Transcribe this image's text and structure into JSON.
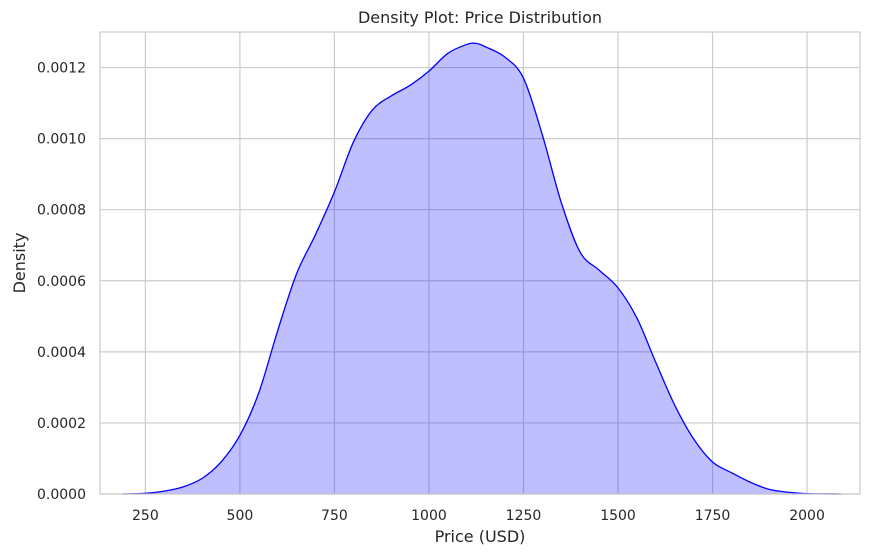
{
  "chart_data": {
    "type": "area",
    "title": "Density Plot: Price Distribution",
    "xlabel": "Price (USD)",
    "ylabel": "Density",
    "xlim": [
      130,
      2140
    ],
    "ylim": [
      0,
      0.0013
    ],
    "x_ticks": [
      250,
      500,
      750,
      1000,
      1250,
      1500,
      1750,
      2000
    ],
    "x_tick_labels": [
      "250",
      "500",
      "750",
      "1000",
      "1250",
      "1500",
      "1750",
      "2000"
    ],
    "y_ticks": [
      0,
      0.0002,
      0.0004,
      0.0006,
      0.0008,
      0.001,
      0.0012
    ],
    "y_tick_labels": [
      "0.0000",
      "0.0002",
      "0.0004",
      "0.0006",
      "0.0008",
      "0.0010",
      "0.0012"
    ],
    "grid": true,
    "series": [
      {
        "x": [
          190,
          250,
          300,
          350,
          400,
          450,
          500,
          550,
          600,
          650,
          700,
          750,
          800,
          850,
          900,
          950,
          1000,
          1050,
          1100,
          1125,
          1150,
          1200,
          1250,
          1300,
          1350,
          1400,
          1450,
          1500,
          1550,
          1600,
          1650,
          1700,
          1750,
          1800,
          1850,
          1900,
          1950,
          2000,
          2090
        ],
        "y": [
          0,
          2e-06,
          8e-06,
          2e-05,
          4.4e-05,
          9e-05,
          0.000165,
          0.000285,
          0.00046,
          0.00062,
          0.00073,
          0.00085,
          0.00099,
          0.00108,
          0.00112,
          0.00115,
          0.00119,
          0.00124,
          0.001265,
          0.001268,
          0.001258,
          0.00123,
          0.00117,
          0.00101,
          0.00082,
          0.00068,
          0.00063,
          0.00058,
          0.000495,
          0.00037,
          0.00025,
          0.000155,
          9e-05,
          6e-05,
          3.3e-05,
          1.3e-05,
          5e-06,
          1e-06,
          0
        ]
      }
    ],
    "colors": {
      "line": "#0000ff",
      "fill": "#bfbfff",
      "grid": "#cccccc",
      "spine": "#cccccc",
      "background": "#ffffff"
    }
  }
}
